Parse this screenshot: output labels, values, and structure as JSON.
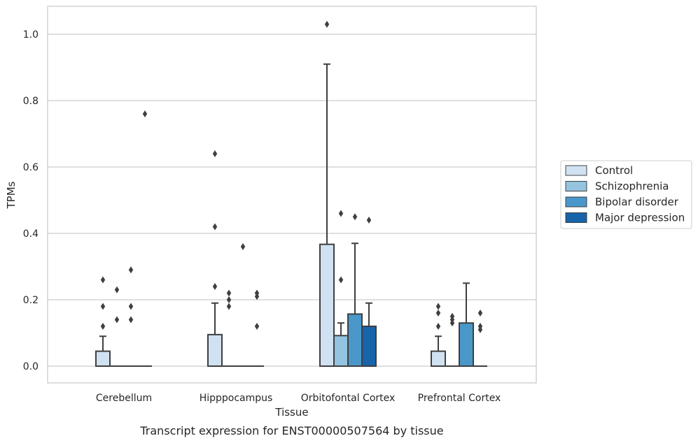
{
  "chart_data": {
    "type": "box",
    "caption": "Transcript expression for ENST00000507564 by tissue",
    "xlabel": "Tissue",
    "ylabel": "TPMs",
    "ylim": [
      -0.05,
      1.08
    ],
    "yticks": [
      "0.0",
      "0.2",
      "0.4",
      "0.6",
      "0.8",
      "1.0"
    ],
    "grid": true,
    "legend_position": "right",
    "categories": [
      "Cerebellum",
      "Hipppocampus",
      "Orbitofontal Cortex",
      "Prefrontal Cortex"
    ],
    "series": [
      {
        "name": "Control",
        "color": "#d0e1f2",
        "boxes": [
          {
            "q1": 0.0,
            "median": 0.0,
            "q3": 0.045,
            "whisker_low": 0.0,
            "whisker_high": 0.09,
            "outliers": [
              0.12,
              0.18,
              0.26
            ]
          },
          {
            "q1": 0.0,
            "median": 0.0,
            "q3": 0.095,
            "whisker_low": 0.0,
            "whisker_high": 0.19,
            "outliers": [
              0.24,
              0.42,
              0.64
            ]
          },
          {
            "q1": 0.0,
            "median": 0.0,
            "q3": 0.367,
            "whisker_low": 0.0,
            "whisker_high": 0.91,
            "outliers": [
              1.03
            ]
          },
          {
            "q1": 0.0,
            "median": 0.0,
            "q3": 0.045,
            "whisker_low": 0.0,
            "whisker_high": 0.09,
            "outliers": [
              0.12,
              0.16,
              0.18
            ]
          }
        ]
      },
      {
        "name": "Schizophrenia",
        "color": "#94c4df",
        "boxes": [
          {
            "q1": 0.0,
            "median": 0.0,
            "q3": 0.0,
            "whisker_low": 0.0,
            "whisker_high": 0.0,
            "outliers": [
              0.14,
              0.23
            ]
          },
          {
            "q1": 0.0,
            "median": 0.0,
            "q3": 0.0,
            "whisker_low": 0.0,
            "whisker_high": 0.0,
            "outliers": [
              0.18,
              0.2,
              0.22
            ]
          },
          {
            "q1": 0.0,
            "median": 0.0,
            "q3": 0.092,
            "whisker_low": 0.0,
            "whisker_high": 0.13,
            "outliers": [
              0.26,
              0.46
            ]
          },
          {
            "q1": 0.0,
            "median": 0.0,
            "q3": 0.0,
            "whisker_low": 0.0,
            "whisker_high": 0.0,
            "outliers": [
              0.13,
              0.14,
              0.15
            ]
          }
        ]
      },
      {
        "name": "Bipolar disorder",
        "color": "#4a98c9",
        "boxes": [
          {
            "q1": 0.0,
            "median": 0.0,
            "q3": 0.0,
            "whisker_low": 0.0,
            "whisker_high": 0.0,
            "outliers": [
              0.14,
              0.18,
              0.29
            ]
          },
          {
            "q1": 0.0,
            "median": 0.0,
            "q3": 0.0,
            "whisker_low": 0.0,
            "whisker_high": 0.0,
            "outliers": [
              0.36
            ]
          },
          {
            "q1": 0.0,
            "median": 0.0,
            "q3": 0.157,
            "whisker_low": 0.0,
            "whisker_high": 0.37,
            "outliers": [
              0.45
            ]
          },
          {
            "q1": 0.0,
            "median": 0.0,
            "q3": 0.13,
            "whisker_low": 0.0,
            "whisker_high": 0.25,
            "outliers": []
          }
        ]
      },
      {
        "name": "Major depression",
        "color": "#1764ab",
        "boxes": [
          {
            "q1": 0.0,
            "median": 0.0,
            "q3": 0.0,
            "whisker_low": 0.0,
            "whisker_high": 0.0,
            "outliers": [
              0.76
            ]
          },
          {
            "q1": 0.0,
            "median": 0.0,
            "q3": 0.0,
            "whisker_low": 0.0,
            "whisker_high": 0.0,
            "outliers": [
              0.12,
              0.21,
              0.22
            ]
          },
          {
            "q1": 0.0,
            "median": 0.0,
            "q3": 0.12,
            "whisker_low": 0.0,
            "whisker_high": 0.19,
            "outliers": [
              0.44
            ]
          },
          {
            "q1": 0.0,
            "median": 0.0,
            "q3": 0.0,
            "whisker_low": 0.0,
            "whisker_high": 0.0,
            "outliers": [
              0.11,
              0.12,
              0.16
            ]
          }
        ]
      }
    ]
  }
}
